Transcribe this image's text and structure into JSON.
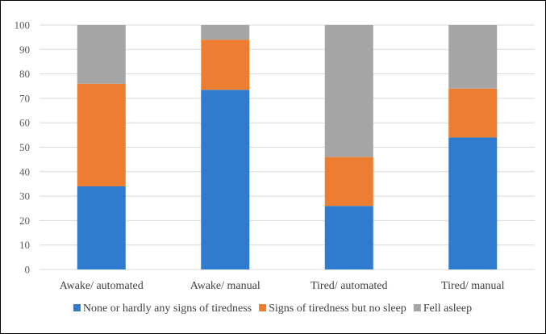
{
  "chart_data": {
    "type": "bar",
    "stacked": true,
    "categories": [
      "Awake/ automated",
      "Awake/ manual",
      "Tired/ automated",
      "Tired/ manual"
    ],
    "series": [
      {
        "name": "None or hardly any signs of tiredness",
        "color": "#2e7bcf",
        "values": [
          34,
          73.5,
          26,
          54
        ]
      },
      {
        "name": "Signs of tiredness but no sleep",
        "color": "#ed7d31",
        "values": [
          42,
          20.5,
          20,
          20
        ]
      },
      {
        "name": "Fell asleep",
        "color": "#a5a5a5",
        "values": [
          24,
          6,
          54,
          26
        ]
      }
    ],
    "ylim": [
      0,
      100
    ],
    "yticks": [
      "0",
      "10",
      "20",
      "30",
      "40",
      "50",
      "60",
      "70",
      "80",
      "90",
      "100"
    ],
    "grid": true,
    "legend_position": "bottom"
  }
}
